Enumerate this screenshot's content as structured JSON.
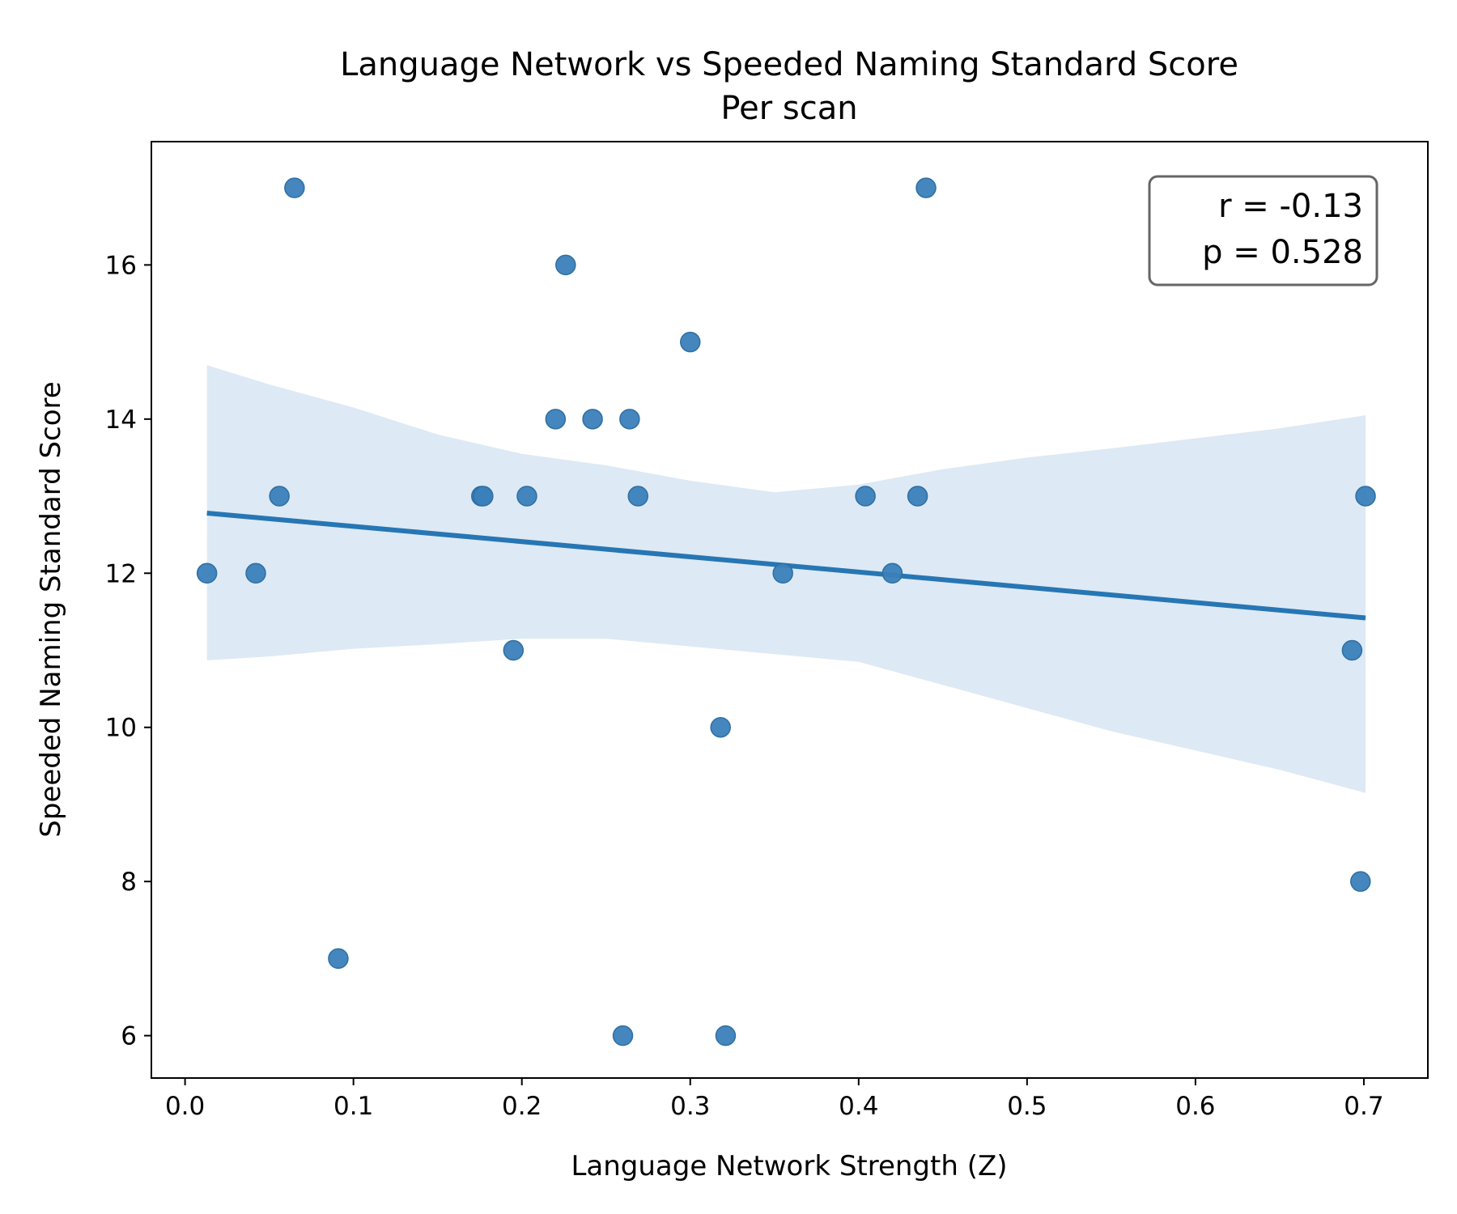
{
  "chart_data": {
    "type": "scatter",
    "title": "Language Network vs Speeded Naming Standard Score",
    "subtitle": "Per scan",
    "xlabel": "Language Network Strength (Z)",
    "ylabel": "Speeded Naming Standard Score",
    "xlim": [
      -0.02,
      0.738
    ],
    "ylim": [
      5.45,
      17.6
    ],
    "x_ticks": [
      "0.0",
      "0.1",
      "0.2",
      "0.3",
      "0.4",
      "0.5",
      "0.6",
      "0.7"
    ],
    "y_ticks": [
      "6",
      "8",
      "10",
      "12",
      "14",
      "16"
    ],
    "grid": false,
    "point_color": "#3a80b9",
    "line_color": "#2776b4",
    "band_color": "#dde9f4",
    "points": [
      {
        "x": 0.013,
        "y": 12
      },
      {
        "x": 0.042,
        "y": 12
      },
      {
        "x": 0.056,
        "y": 13
      },
      {
        "x": 0.065,
        "y": 17
      },
      {
        "x": 0.091,
        "y": 7
      },
      {
        "x": 0.176,
        "y": 13
      },
      {
        "x": 0.177,
        "y": 13
      },
      {
        "x": 0.195,
        "y": 11
      },
      {
        "x": 0.203,
        "y": 13
      },
      {
        "x": 0.22,
        "y": 14
      },
      {
        "x": 0.226,
        "y": 16
      },
      {
        "x": 0.242,
        "y": 14
      },
      {
        "x": 0.26,
        "y": 6
      },
      {
        "x": 0.264,
        "y": 14
      },
      {
        "x": 0.269,
        "y": 13
      },
      {
        "x": 0.3,
        "y": 15
      },
      {
        "x": 0.318,
        "y": 10
      },
      {
        "x": 0.321,
        "y": 6
      },
      {
        "x": 0.355,
        "y": 12
      },
      {
        "x": 0.404,
        "y": 13
      },
      {
        "x": 0.42,
        "y": 12
      },
      {
        "x": 0.435,
        "y": 13
      },
      {
        "x": 0.44,
        "y": 17
      },
      {
        "x": 0.693,
        "y": 11
      },
      {
        "x": 0.698,
        "y": 8
      },
      {
        "x": 0.701,
        "y": 13
      }
    ],
    "regression": {
      "x": [
        0.013,
        0.701
      ],
      "y": [
        12.78,
        11.42
      ]
    },
    "confidence_band": {
      "x": [
        0.013,
        0.05,
        0.1,
        0.15,
        0.2,
        0.25,
        0.3,
        0.35,
        0.4,
        0.45,
        0.5,
        0.55,
        0.6,
        0.65,
        0.701
      ],
      "upper": [
        14.7,
        14.45,
        14.15,
        13.8,
        13.55,
        13.4,
        13.2,
        13.05,
        13.15,
        13.35,
        13.5,
        13.62,
        13.75,
        13.88,
        14.05
      ],
      "lower": [
        10.87,
        10.92,
        11.02,
        11.08,
        11.15,
        11.15,
        11.05,
        10.95,
        10.85,
        10.55,
        10.25,
        9.95,
        9.7,
        9.45,
        9.15
      ]
    },
    "annotation": {
      "r": "r = -0.13",
      "p": "p = 0.528",
      "position": "top-right"
    }
  }
}
